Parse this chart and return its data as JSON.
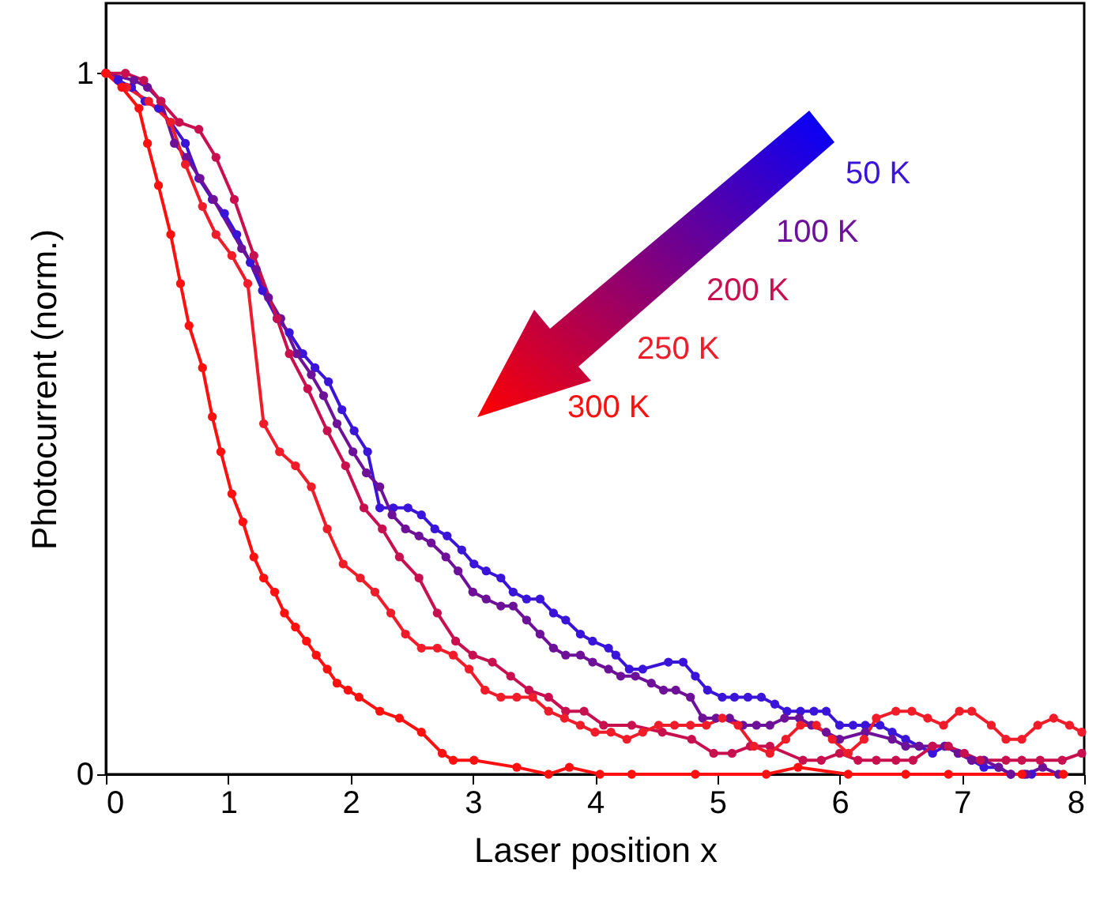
{
  "chart_data": {
    "type": "line",
    "xlabel": "Laser position x",
    "ylabel": "Photocurrent (norm.)",
    "xlim": [
      0,
      8
    ],
    "ylim": [
      0,
      1.1
    ],
    "xticks": [
      0,
      1,
      2,
      3,
      4,
      5,
      6,
      7,
      8
    ],
    "yticks": [
      0,
      1
    ],
    "grid": false,
    "marker": "circle",
    "line_style": "solid",
    "series": [
      {
        "name": "50 K",
        "color": "#3a14d8",
        "x": [
          0,
          0.1,
          0.21,
          0.32,
          0.43,
          0.53,
          0.65,
          0.76,
          0.87,
          0.97,
          1.07,
          1.18,
          1.28,
          1.4,
          1.5,
          1.61,
          1.71,
          1.82,
          1.93,
          2.03,
          2.14,
          2.24,
          2.35,
          2.47,
          2.58,
          2.69,
          2.79,
          2.91,
          3.01,
          3.11,
          3.23,
          3.33,
          3.44,
          3.55,
          3.66,
          3.76,
          3.88,
          3.98,
          4.11,
          4.17,
          4.28,
          4.39,
          4.6,
          4.72,
          4.82,
          4.92,
          5.04,
          5.14,
          5.25,
          5.36,
          5.47,
          5.57,
          5.68,
          5.79,
          5.89,
          6.0,
          6.11,
          6.21,
          6.33,
          6.43,
          6.54,
          6.65,
          6.76,
          6.86,
          6.97,
          7.08,
          7.18,
          7.3,
          7.4,
          7.51,
          7.57
        ],
        "values": [
          1,
          0.99,
          0.98,
          0.96,
          0.95,
          0.93,
          0.9,
          0.85,
          0.82,
          0.8,
          0.77,
          0.73,
          0.69,
          0.65,
          0.63,
          0.6,
          0.58,
          0.56,
          0.52,
          0.49,
          0.46,
          0.38,
          0.38,
          0.38,
          0.37,
          0.35,
          0.34,
          0.32,
          0.3,
          0.29,
          0.28,
          0.26,
          0.25,
          0.25,
          0.23,
          0.22,
          0.2,
          0.19,
          0.18,
          0.17,
          0.15,
          0.15,
          0.16,
          0.16,
          0.14,
          0.12,
          0.11,
          0.11,
          0.11,
          0.11,
          0.1,
          0.09,
          0.09,
          0.09,
          0.09,
          0.07,
          0.07,
          0.07,
          0.07,
          0.06,
          0.05,
          0.04,
          0.03,
          0.04,
          0.03,
          0.02,
          0.01,
          0.01,
          0,
          0,
          0
        ]
      },
      {
        "name": "100 K",
        "color": "#6e1199",
        "x": [
          0,
          0.23,
          0.34,
          0.45,
          0.56,
          0.66,
          0.77,
          0.88,
          1.11,
          1.23,
          1.33,
          1.43,
          1.56,
          1.68,
          1.78,
          1.89,
          2.02,
          2.13,
          2.24,
          2.34,
          2.45,
          2.56,
          2.66,
          2.78,
          2.88,
          3.0,
          3.11,
          3.23,
          3.33,
          3.44,
          3.55,
          3.66,
          3.76,
          3.88,
          3.98,
          4.11,
          4.21,
          4.33,
          4.46,
          4.56,
          4.66,
          4.78,
          4.88,
          4.99,
          5.1,
          5.21,
          5.32,
          5.43,
          5.55,
          5.67,
          5.77,
          5.89,
          6.0,
          6.21,
          6.43,
          6.54,
          6.65,
          6.76,
          6.86,
          6.97,
          7.08,
          7.18,
          7.3,
          7.4,
          7.53,
          7.66,
          7.79
        ],
        "values": [
          1,
          0.99,
          0.98,
          0.96,
          0.9,
          0.88,
          0.85,
          0.82,
          0.75,
          0.72,
          0.68,
          0.65,
          0.6,
          0.57,
          0.54,
          0.5,
          0.46,
          0.43,
          0.41,
          0.37,
          0.35,
          0.34,
          0.33,
          0.31,
          0.29,
          0.26,
          0.25,
          0.24,
          0.24,
          0.22,
          0.2,
          0.18,
          0.17,
          0.17,
          0.16,
          0.15,
          0.14,
          0.14,
          0.13,
          0.12,
          0.12,
          0.11,
          0.08,
          0.08,
          0.08,
          0.07,
          0.07,
          0.07,
          0.08,
          0.08,
          0.07,
          0.06,
          0.05,
          0.06,
          0.05,
          0.04,
          0.04,
          0.04,
          0.04,
          0.03,
          0.02,
          0.02,
          0.01,
          0,
          0,
          0.01,
          0
        ]
      },
      {
        "name": "200 K",
        "color": "#c8104f",
        "x": [
          0,
          0.16,
          0.31,
          0.45,
          0.6,
          0.76,
          0.9,
          1.05,
          1.21,
          1.4,
          1.5,
          1.65,
          1.81,
          1.96,
          2.11,
          2.26,
          2.4,
          2.56,
          2.71,
          2.86,
          3.0,
          3.16,
          3.31,
          3.46,
          3.62,
          3.76,
          3.91,
          4.07,
          4.3,
          4.55,
          4.79,
          4.97,
          5.12,
          5.27,
          5.43,
          5.7,
          5.85,
          6.0,
          6.15,
          6.3,
          6.46,
          6.6,
          6.76,
          6.89,
          7.02,
          7.15,
          7.36,
          7.49,
          7.64,
          7.82,
          7.98
        ],
        "values": [
          1,
          1,
          0.99,
          0.96,
          0.93,
          0.92,
          0.88,
          0.82,
          0.74,
          0.65,
          0.6,
          0.55,
          0.49,
          0.44,
          0.38,
          0.35,
          0.31,
          0.28,
          0.23,
          0.19,
          0.17,
          0.16,
          0.14,
          0.12,
          0.11,
          0.09,
          0.09,
          0.07,
          0.07,
          0.06,
          0.05,
          0.03,
          0.03,
          0.04,
          0.04,
          0.02,
          0.02,
          0.03,
          0.02,
          0.02,
          0.02,
          0.02,
          0.04,
          0.04,
          0.03,
          0.02,
          0.02,
          0.02,
          0.02,
          0.02,
          0.03
        ]
      },
      {
        "name": "250 K",
        "color": "#f01c2a",
        "x": [
          0,
          0.17,
          0.35,
          0.53,
          0.65,
          0.79,
          0.9,
          1.03,
          1.16,
          1.29,
          1.42,
          1.55,
          1.68,
          1.81,
          1.94,
          2.08,
          2.2,
          2.33,
          2.45,
          2.58,
          2.71,
          2.84,
          2.97,
          3.1,
          3.23,
          3.36,
          3.49,
          3.62,
          3.75,
          3.88,
          4.0,
          4.13,
          4.26,
          4.39,
          4.52,
          4.65,
          4.78,
          4.91,
          5.04,
          5.17,
          5.3,
          5.43,
          5.56,
          5.68,
          5.81,
          5.94,
          6.07,
          6.2,
          6.3,
          6.46,
          6.59,
          6.72,
          6.85,
          6.98,
          7.08,
          7.24,
          7.36,
          7.49,
          7.62,
          7.75,
          7.88,
          7.98
        ],
        "values": [
          1,
          0.98,
          0.96,
          0.93,
          0.87,
          0.81,
          0.77,
          0.74,
          0.7,
          0.5,
          0.46,
          0.44,
          0.41,
          0.35,
          0.3,
          0.28,
          0.26,
          0.23,
          0.2,
          0.18,
          0.18,
          0.17,
          0.15,
          0.12,
          0.11,
          0.11,
          0.11,
          0.09,
          0.08,
          0.07,
          0.06,
          0.06,
          0.05,
          0.06,
          0.07,
          0.07,
          0.07,
          0.07,
          0.08,
          0.07,
          0.04,
          0.03,
          0.05,
          0.07,
          0.07,
          0.05,
          0.03,
          0.05,
          0.08,
          0.09,
          0.09,
          0.08,
          0.07,
          0.09,
          0.09,
          0.07,
          0.05,
          0.05,
          0.07,
          0.08,
          0.07,
          0.06
        ]
      },
      {
        "name": "300 K",
        "color": "#ff1010",
        "x": [
          0,
          0.13,
          0.27,
          0.34,
          0.43,
          0.53,
          0.61,
          0.68,
          0.79,
          0.87,
          0.94,
          1.03,
          1.12,
          1.21,
          1.29,
          1.38,
          1.46,
          1.55,
          1.64,
          1.72,
          1.81,
          1.89,
          1.98,
          2.07,
          2.24,
          2.4,
          2.58,
          2.75,
          2.84,
          3.01,
          3.36,
          3.62,
          3.79,
          4.04,
          4.3,
          4.82,
          5.4,
          5.66,
          6.07,
          6.54,
          6.89,
          7.49,
          7.83
        ],
        "values": [
          1,
          0.98,
          0.95,
          0.9,
          0.84,
          0.77,
          0.7,
          0.64,
          0.58,
          0.51,
          0.46,
          0.4,
          0.36,
          0.31,
          0.28,
          0.26,
          0.23,
          0.21,
          0.19,
          0.17,
          0.15,
          0.13,
          0.12,
          0.11,
          0.09,
          0.08,
          0.06,
          0.03,
          0.02,
          0.02,
          0.01,
          0,
          0.01,
          0,
          0,
          0,
          0,
          0.01,
          0,
          0,
          0,
          0,
          0
        ]
      }
    ]
  }
}
